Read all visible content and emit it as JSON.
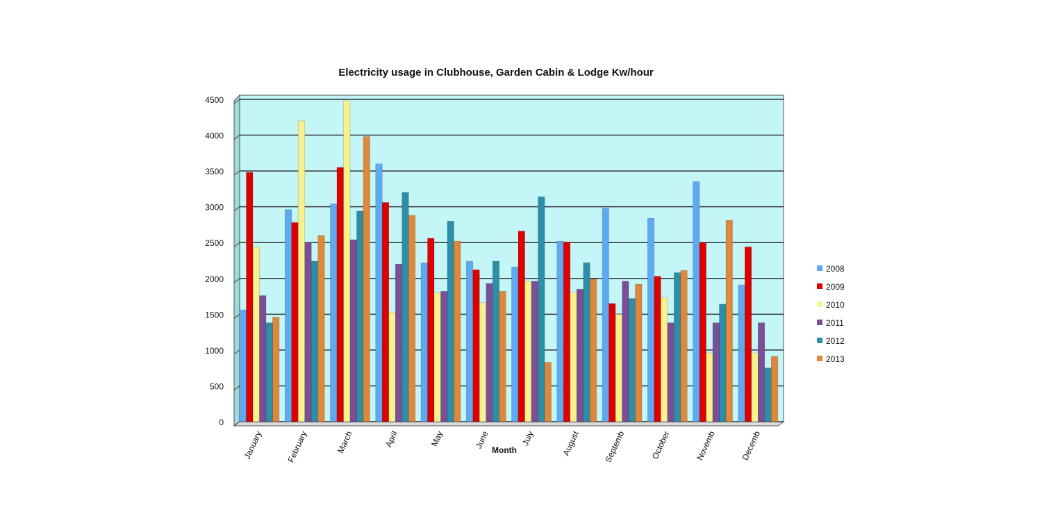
{
  "chart_data": {
    "type": "bar",
    "title": "Electricity usage in Clubhouse, Garden Cabin & Lodge Kw/hour",
    "xlabel": "Month",
    "ylabel": "",
    "ylim": [
      0,
      4500
    ],
    "yticks": [
      0,
      500,
      1000,
      1500,
      2000,
      2500,
      3000,
      3500,
      4000,
      4500
    ],
    "grid": true,
    "legend_position": "right",
    "categories": [
      "January",
      "February",
      "March",
      "April",
      "May",
      "June",
      "July",
      "August",
      "Septemb",
      "October",
      "Novemb",
      "Decemb"
    ],
    "series": [
      {
        "name": "2008",
        "color": "#5eaaf2",
        "values": [
          1560,
          2960,
          3040,
          3600,
          2220,
          2240,
          2160,
          2520,
          2980,
          2840,
          3350,
          1910
        ]
      },
      {
        "name": "2009",
        "color": "#dd0000",
        "values": [
          3480,
          2780,
          3550,
          3060,
          2560,
          2120,
          2660,
          2510,
          1650,
          2030,
          2500,
          2440
        ]
      },
      {
        "name": "2010",
        "color": "#f7f28c",
        "values": [
          2440,
          4200,
          4480,
          1530,
          1800,
          1660,
          1960,
          1800,
          1500,
          1730,
          960,
          960
        ]
      },
      {
        "name": "2011",
        "color": "#7a4f98",
        "values": [
          1760,
          2500,
          2540,
          2200,
          1820,
          1930,
          1960,
          1850,
          1960,
          1380,
          1380,
          1380
        ]
      },
      {
        "name": "2012",
        "color": "#2e8ea6",
        "values": [
          1380,
          2240,
          2940,
          3200,
          2800,
          2240,
          3140,
          2220,
          1720,
          2080,
          1640,
          750
        ]
      },
      {
        "name": "2013",
        "color": "#e0883a",
        "values": [
          1460,
          2600,
          3980,
          2880,
          2520,
          1820,
          830,
          1990,
          1920,
          2110,
          2810,
          910
        ]
      }
    ],
    "background_color": "#c4f6f8"
  }
}
